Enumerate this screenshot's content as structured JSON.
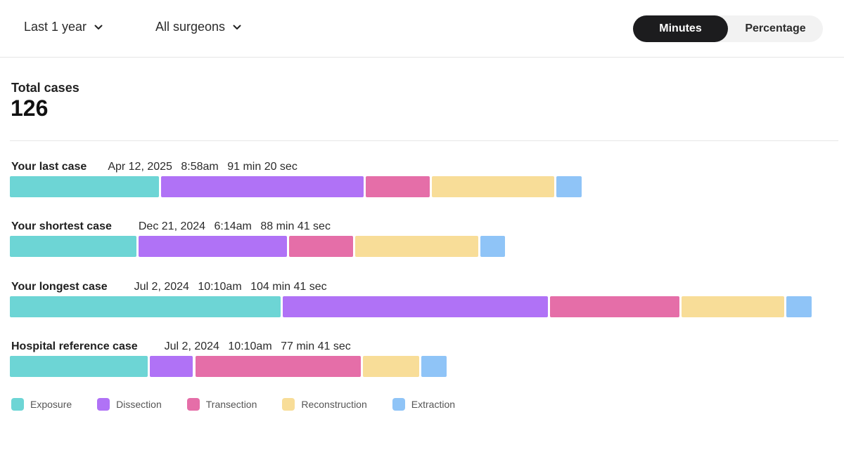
{
  "filters": {
    "range_label": "Last 1 year",
    "surgeon_label": "All surgeons"
  },
  "toggle": {
    "minutes_label": "Minutes",
    "percentage_label": "Percentage",
    "selected": "Minutes"
  },
  "summary": {
    "total_label": "Total cases",
    "total_value": "126"
  },
  "chart_data": {
    "type": "bar",
    "orientation": "horizontal",
    "stacked": true,
    "categories": [
      "Your last case",
      "Your shortest case",
      "Your longest case",
      "Hospital reference case"
    ],
    "series": [
      {
        "name": "Exposure",
        "color": "#6dd5d5",
        "values": [
          16.2,
          13.8,
          29.3,
          15.0
        ]
      },
      {
        "name": "Dissection",
        "color": "#b072f6",
        "values": [
          22.0,
          16.2,
          28.7,
          4.9
        ]
      },
      {
        "name": "Transection",
        "color": "#e56ea8",
        "values": [
          7.1,
          7.1,
          14.1,
          18.0
        ]
      },
      {
        "name": "Reconstruction",
        "color": "#f8dd98",
        "values": [
          13.4,
          13.4,
          11.3,
          6.3
        ]
      },
      {
        "name": "Extraction",
        "color": "#8fc4f7",
        "values": [
          2.9,
          2.9,
          2.9,
          2.9
        ]
      }
    ],
    "legend_position": "bottom-left",
    "grid": false,
    "x_max": 87.6
  },
  "cases": [
    {
      "title": "Your last case",
      "date": "Apr 12, 2025",
      "time": "8:58am",
      "duration": "91 min 20 sec"
    },
    {
      "title": "Your shortest case",
      "date": "Dec 21, 2024",
      "time": "6:14am",
      "duration": "88 min 41 sec"
    },
    {
      "title": "Your longest case",
      "date": "Jul 2, 2024",
      "time": "10:10am",
      "duration": "104 min 41 sec"
    },
    {
      "title": "Hospital reference case",
      "date": "Jul 2, 2024",
      "time": "10:10am",
      "duration": "77 min 41 sec"
    }
  ],
  "legend": [
    {
      "label": "Exposure",
      "color": "#6dd5d5"
    },
    {
      "label": "Dissection",
      "color": "#b072f6"
    },
    {
      "label": "Transection",
      "color": "#e56ea8"
    },
    {
      "label": "Reconstruction",
      "color": "#f8dd98"
    },
    {
      "label": "Extraction",
      "color": "#8fc4f7"
    }
  ]
}
